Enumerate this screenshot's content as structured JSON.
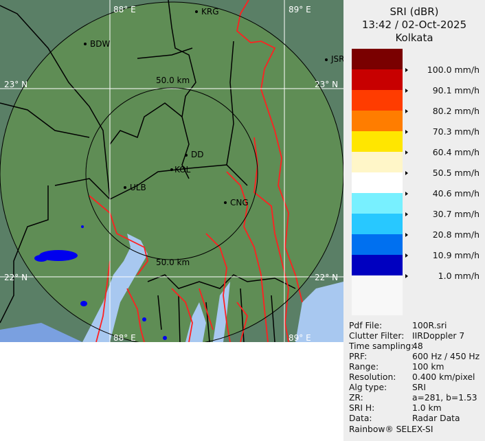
{
  "map": {
    "grid_labels": {
      "lon_88": "88° E",
      "lon_89": "89° E",
      "lat_23": "23° N",
      "lat_22": "22° N"
    },
    "range_rings": [
      "50.0 km",
      "50.0 km"
    ],
    "places": [
      "KRG",
      "BDW",
      "JSR",
      "DD",
      "KOL",
      "ULB",
      "CNG"
    ],
    "colors": {
      "land": "#5f8d55",
      "water": "#a8c8f0",
      "rivers": "#ff2020",
      "borders": "#000000",
      "echo": "#0000ee"
    }
  },
  "legend": {
    "title": "SRI (dBR)",
    "datetime": "13:42 / 02-Oct-2025",
    "station": "Kolkata",
    "bands": [
      {
        "color": "#7a0000"
      },
      {
        "color": "#c80000"
      },
      {
        "color": "#ff3c00"
      },
      {
        "color": "#ff7d00"
      },
      {
        "color": "#ffe600"
      },
      {
        "color": "#fff6c8"
      },
      {
        "color": "#ffffff"
      },
      {
        "color": "#78f0ff"
      },
      {
        "color": "#28c8ff"
      },
      {
        "color": "#0070f0"
      },
      {
        "color": "#0000c0"
      }
    ],
    "labels": [
      "100.0 mm/h",
      "90.1 mm/h",
      "80.2 mm/h",
      "70.3 mm/h",
      "60.4 mm/h",
      "50.5 mm/h",
      "40.6 mm/h",
      "30.7 mm/h",
      "20.8 mm/h",
      "10.9 mm/h",
      "1.0 mm/h"
    ]
  },
  "info": [
    {
      "key": "Pdf File:",
      "value": "100R.sri"
    },
    {
      "key": "Clutter Filter:",
      "value": "IIRDoppler 7"
    },
    {
      "key": "Time sampling:",
      "value": "48"
    },
    {
      "key": "PRF:",
      "value": "600 Hz / 450 Hz"
    },
    {
      "key": "Range:",
      "value": "100 km"
    },
    {
      "key": "Resolution:",
      "value": "0.400 km/pixel"
    },
    {
      "key": "Alg type:",
      "value": "SRI"
    },
    {
      "key": "ZR:",
      "value": "a=281, b=1.53"
    },
    {
      "key": "SRI H:",
      "value": "1.0 km"
    },
    {
      "key": "Data:",
      "value": "Radar Data"
    }
  ],
  "credit": "Rainbow® SELEX-SI"
}
